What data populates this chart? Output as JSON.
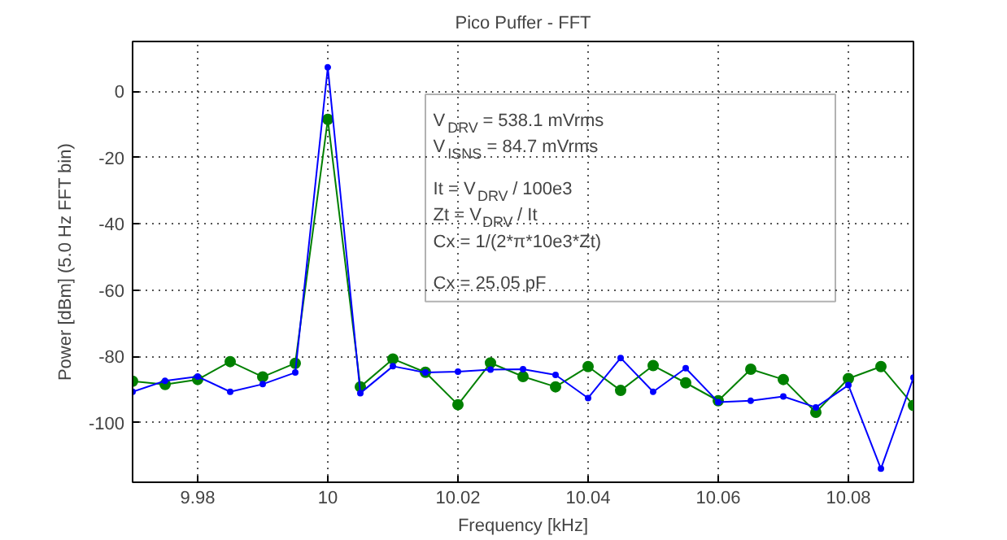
{
  "chart_data": {
    "type": "line",
    "title": "Pico Puffer - FFT",
    "xlabel": "Frequency [kHz]",
    "ylabel": "Power [dBm] (5.0 Hz FFT bin)",
    "x": [
      9.97,
      9.975,
      9.98,
      9.985,
      9.99,
      9.995,
      10.0,
      10.005,
      10.01,
      10.015,
      10.02,
      10.025,
      10.03,
      10.035,
      10.04,
      10.045,
      10.05,
      10.055,
      10.06,
      10.065,
      10.07,
      10.075,
      10.08,
      10.085,
      10.09
    ],
    "series": [
      {
        "color": "#008000",
        "values": [
          -87.5,
          -88.5,
          -87,
          -81.6,
          -86.2,
          -82.1,
          -8.5,
          -89.2,
          -80.8,
          -84.8,
          -94.6,
          -82,
          -86.1,
          -89.2,
          -83.1,
          -90.3,
          -82.8,
          -88,
          -93.4,
          -83.9,
          -87,
          -96.9,
          -86.7,
          -83.1,
          -94.8
        ]
      },
      {
        "color": "#0000ff",
        "values": [
          -90.7,
          -87.4,
          -86.1,
          -90.7,
          -88.4,
          -84.9,
          7.2,
          -91.1,
          -83,
          -84.9,
          -84.6,
          -84,
          -83.9,
          -85.6,
          -92.6,
          -80.5,
          -90.7,
          -83.6,
          -93.8,
          -93.4,
          -92.1,
          -95.4,
          -88.7,
          -113.9,
          -86.4
        ]
      }
    ],
    "xlim": [
      9.97,
      10.09
    ],
    "ylim": [
      -118,
      15
    ],
    "xticks": [
      9.98,
      10,
      10.02,
      10.04,
      10.06,
      10.08
    ],
    "yticks": [
      -100,
      -80,
      -60,
      -40,
      -20,
      0
    ],
    "grid": true,
    "marker": "circle",
    "line_style": "solid",
    "annotations": [
      "V$_{DRV}$ = 538.1 mVrms",
      "V$_{ISNS}$ = 84.7 mVrms",
      "It = V$_{DRV}$ / 100e3",
      "Zt = V$_{DRV}$ / It",
      "Cx = 1/(2*π*10e3*Zt)",
      "Cx = 25.05 pF"
    ]
  }
}
